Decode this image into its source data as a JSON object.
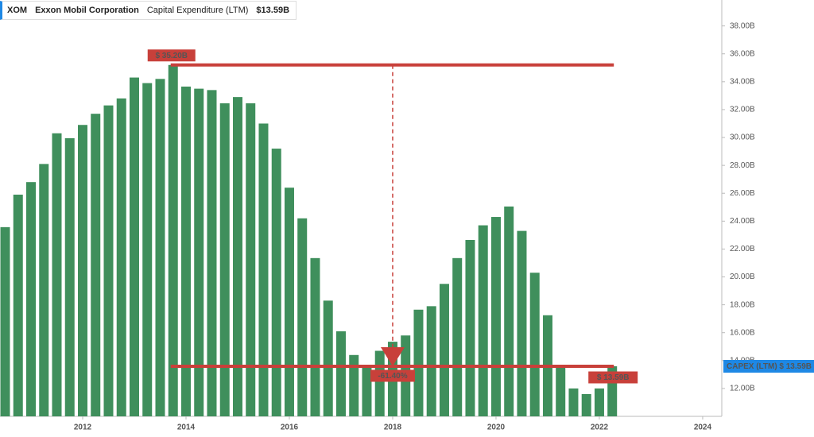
{
  "chart_data": {
    "type": "bar",
    "ticker": "XOM",
    "title": "Exxon Mobil Corporation",
    "current_value": "$13.59B",
    "x": [
      2010.5,
      2010.75,
      2011,
      2011.25,
      2011.5,
      2011.75,
      2012,
      2012.25,
      2012.5,
      2012.75,
      2013,
      2013.25,
      2013.5,
      2013.75,
      2014,
      2014.25,
      2014.5,
      2014.75,
      2015,
      2015.25,
      2015.5,
      2015.75,
      2016,
      2016.25,
      2016.5,
      2016.75,
      2017,
      2017.25,
      2017.5,
      2017.75,
      2018,
      2018.25,
      2018.5,
      2018.75,
      2019,
      2019.25,
      2019.5,
      2019.75,
      2020,
      2020.25,
      2020.5,
      2020.75,
      2021,
      2021.25,
      2021.5,
      2021.75,
      2022,
      2022.25
    ],
    "series": [
      {
        "name": "Capital Expenditure (LTM)",
        "color": "#3f8f5c",
        "values": [
          23.57,
          25.9,
          26.8,
          28.1,
          30.3,
          29.95,
          30.9,
          31.7,
          32.3,
          32.8,
          34.3,
          33.9,
          34.2,
          35.2,
          33.65,
          33.5,
          33.4,
          32.45,
          32.9,
          32.45,
          31.0,
          29.2,
          26.4,
          24.2,
          21.35,
          18.3,
          16.1,
          14.4,
          13.5,
          14.7,
          15.35,
          15.8,
          17.65,
          17.9,
          19.5,
          21.35,
          22.65,
          23.7,
          24.3,
          25.05,
          23.3,
          20.3,
          17.25,
          13.55,
          12.0,
          11.6,
          12.0,
          13.59
        ]
      }
    ],
    "annotations": {
      "high_label": "$ 35.20B",
      "change_label": "-61.40%",
      "last_label": "$ 13.59B",
      "badge_name": "CAPEX (LTM)",
      "badge_value": "$ 13.59B",
      "color": "#c8403a"
    },
    "xlim": [
      2010.4,
      2024.37
    ],
    "xticks": [
      2012,
      2014,
      2016,
      2018,
      2020,
      2022,
      2024
    ],
    "ylim": [
      10,
      39.86
    ],
    "yticks": [
      {
        "value": 12,
        "label": "12.00B"
      },
      {
        "value": 14,
        "label": "14.00B"
      },
      {
        "value": 16,
        "label": "16.00B"
      },
      {
        "value": 18,
        "label": "18.00B"
      },
      {
        "value": 20,
        "label": "20.00B"
      },
      {
        "value": 22,
        "label": "22.00B"
      },
      {
        "value": 24,
        "label": "24.00B"
      },
      {
        "value": 26,
        "label": "26.00B"
      },
      {
        "value": 28,
        "label": "28.00B"
      },
      {
        "value": 30,
        "label": "30.00B"
      },
      {
        "value": 32,
        "label": "32.00B"
      },
      {
        "value": 34,
        "label": "34.00B"
      },
      {
        "value": 36,
        "label": "36.00B"
      },
      {
        "value": 38,
        "label": "38.00B"
      }
    ]
  }
}
